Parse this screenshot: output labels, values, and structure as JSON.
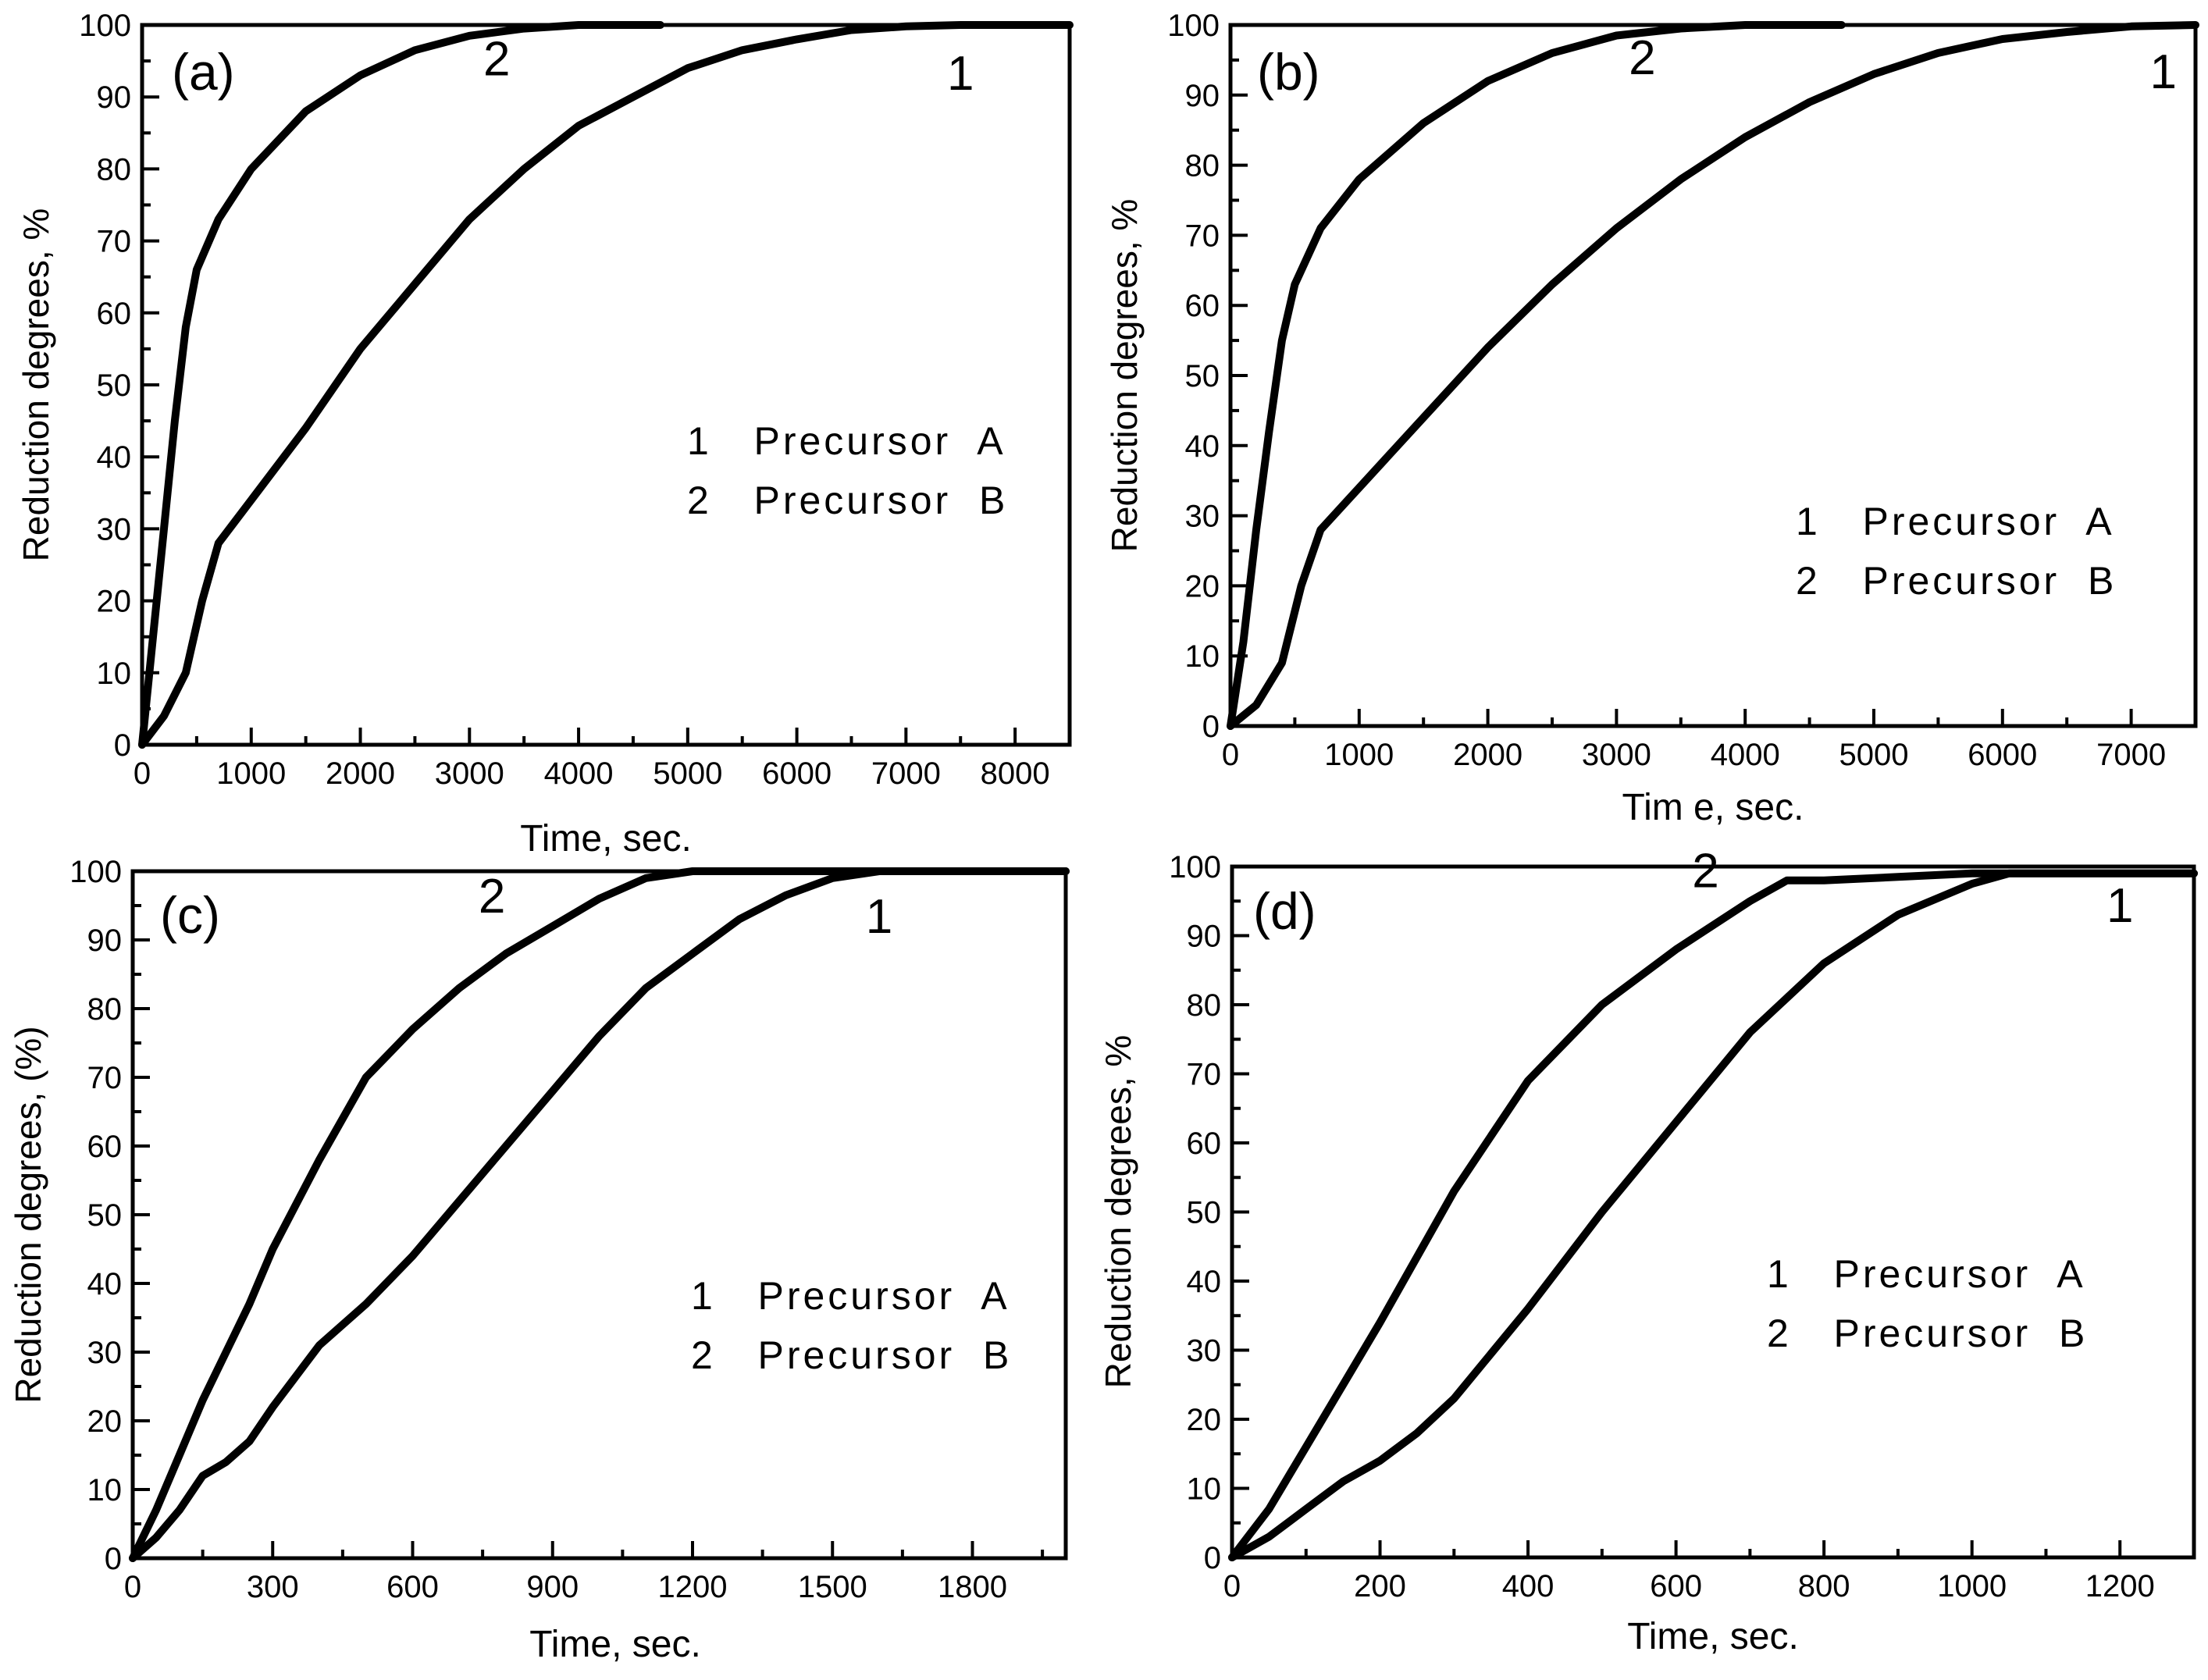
{
  "chart_data": [
    {
      "panel": "(a)",
      "type": "line",
      "xlabel": "Time, sec.",
      "ylabel": "Reduction degrees, %",
      "xlim": [
        0,
        8500
      ],
      "ylim": [
        0,
        100
      ],
      "xticks": [
        0,
        1000,
        2000,
        3000,
        4000,
        5000,
        6000,
        7000,
        8000
      ],
      "yticks": [
        0,
        10,
        20,
        30,
        40,
        50,
        60,
        70,
        80,
        90,
        100
      ],
      "legend": [
        "1   Precursor  A",
        "2   Precursor  B"
      ],
      "series": [
        {
          "name": "1",
          "label_pos": [
            7500,
            91
          ],
          "x": [
            0,
            200,
            400,
            550,
            700,
            1000,
            1500,
            2000,
            2500,
            3000,
            3500,
            4000,
            4500,
            5000,
            5500,
            6000,
            6500,
            7000,
            7500,
            8000,
            8500
          ],
          "y": [
            0,
            4,
            10,
            20,
            28,
            34,
            44,
            55,
            64,
            73,
            80,
            86,
            90,
            94,
            96.5,
            98,
            99.3,
            99.8,
            100,
            100,
            100
          ]
        },
        {
          "name": "2",
          "label_pos": [
            3250,
            93
          ],
          "x": [
            0,
            100,
            200,
            300,
            400,
            500,
            700,
            1000,
            1500,
            2000,
            2500,
            3000,
            3500,
            4000,
            4500,
            4750
          ],
          "y": [
            0,
            15,
            30,
            45,
            58,
            66,
            73,
            80,
            88,
            93,
            96.5,
            98.5,
            99.5,
            100,
            100,
            100
          ]
        }
      ]
    },
    {
      "panel": "(b)",
      "type": "line",
      "xlabel": "Tim e,  sec.",
      "ylabel": "Reduction degrees, %",
      "xlim": [
        0,
        7500
      ],
      "ylim": [
        0,
        100
      ],
      "xticks": [
        0,
        1000,
        2000,
        3000,
        4000,
        5000,
        6000,
        7000
      ],
      "yticks": [
        0,
        10,
        20,
        30,
        40,
        50,
        60,
        70,
        80,
        90,
        100
      ],
      "legend": [
        "1   Precursor  A",
        "2   Precursor  B"
      ],
      "series": [
        {
          "name": "1",
          "label_pos": [
            7250,
            91
          ],
          "x": [
            0,
            200,
            400,
            550,
            700,
            1000,
            1500,
            2000,
            2500,
            3000,
            3500,
            4000,
            4500,
            5000,
            5500,
            6000,
            6500,
            7000,
            7500
          ],
          "y": [
            0,
            3,
            9,
            20,
            28,
            34,
            44,
            54,
            63,
            71,
            78,
            84,
            89,
            93,
            96,
            98,
            99,
            99.8,
            100
          ]
        },
        {
          "name": "2",
          "label_pos": [
            3200,
            93
          ],
          "x": [
            0,
            100,
            200,
            300,
            400,
            500,
            700,
            1000,
            1500,
            2000,
            2500,
            3000,
            3500,
            4000,
            4750
          ],
          "y": [
            0,
            12,
            28,
            42,
            55,
            63,
            71,
            78,
            86,
            92,
            96,
            98.5,
            99.5,
            100,
            100
          ]
        }
      ]
    },
    {
      "panel": "(c)",
      "type": "line",
      "xlabel": "Time,  sec.",
      "ylabel": "Reduction degrees, (%)",
      "xlim": [
        0,
        2000
      ],
      "ylim": [
        0,
        100
      ],
      "xticks": [
        0,
        300,
        600,
        900,
        1200,
        1500,
        1800
      ],
      "yticks": [
        0,
        10,
        20,
        30,
        40,
        50,
        60,
        70,
        80,
        90,
        100
      ],
      "legend": [
        "1   Precursor  A",
        "2   Precursor  B"
      ],
      "series": [
        {
          "name": "1",
          "label_pos": [
            1600,
            91
          ],
          "x": [
            0,
            50,
            100,
            150,
            200,
            250,
            300,
            400,
            500,
            600,
            700,
            800,
            900,
            1000,
            1100,
            1200,
            1300,
            1400,
            1500,
            1600,
            1700,
            1800,
            2000
          ],
          "y": [
            0,
            3,
            7,
            12,
            14,
            17,
            22,
            31,
            37,
            44,
            52,
            60,
            68,
            76,
            83,
            88,
            93,
            96.5,
            99,
            100,
            100,
            100,
            100
          ]
        },
        {
          "name": "2",
          "label_pos": [
            770,
            94
          ],
          "x": [
            0,
            50,
            100,
            150,
            200,
            250,
            300,
            400,
            500,
            600,
            700,
            800,
            900,
            1000,
            1100,
            1200,
            1300,
            1500,
            1800,
            2000
          ],
          "y": [
            0,
            7,
            15,
            23,
            30,
            37,
            45,
            58,
            70,
            77,
            83,
            88,
            92,
            96,
            99,
            100,
            100,
            100,
            100,
            100
          ]
        }
      ]
    },
    {
      "panel": "(d)",
      "type": "line",
      "xlabel": "Time,  sec.",
      "ylabel": "Reduction degrees, %",
      "xlim": [
        0,
        1300
      ],
      "ylim": [
        0,
        100
      ],
      "xticks": [
        0,
        200,
        400,
        600,
        800,
        1000,
        1200
      ],
      "yticks": [
        0,
        10,
        20,
        30,
        40,
        50,
        60,
        70,
        80,
        90,
        100
      ],
      "legend": [
        "1   Precursor  A",
        "2   Precursor  B"
      ],
      "series": [
        {
          "name": "1",
          "label_pos": [
            1200,
            92
          ],
          "x": [
            0,
            50,
            100,
            150,
            200,
            250,
            300,
            400,
            500,
            600,
            700,
            800,
            900,
            1000,
            1050,
            1100,
            1200,
            1300
          ],
          "y": [
            0,
            3,
            7,
            11,
            14,
            18,
            23,
            36,
            50,
            63,
            76,
            86,
            93,
            97.5,
            99,
            99,
            99,
            99
          ]
        },
        {
          "name": "2",
          "label_pos": [
            640,
            97
          ],
          "x": [
            0,
            50,
            100,
            150,
            200,
            300,
            400,
            500,
            600,
            700,
            750,
            800,
            900,
            1000,
            1050,
            1300
          ],
          "y": [
            0,
            7,
            16,
            25,
            34,
            53,
            69,
            80,
            88,
            95,
            98,
            98,
            98.5,
            99,
            99,
            99
          ]
        }
      ]
    }
  ]
}
